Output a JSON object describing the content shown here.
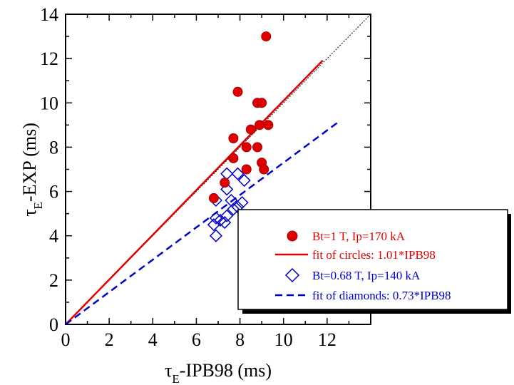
{
  "chart_data": {
    "type": "scatter",
    "title": "",
    "xlabel": {
      "main": "τ",
      "sub": "E",
      "rest": "-IPB98 (ms)"
    },
    "ylabel": {
      "main": "τ",
      "sub": "E",
      "rest": "-EXP (ms)"
    },
    "xlim": [
      0,
      14
    ],
    "ylim": [
      0,
      14
    ],
    "xticks": [
      "0",
      "2",
      "4",
      "6",
      "8",
      "10",
      "12"
    ],
    "yticks": [
      "0",
      "2",
      "4",
      "6",
      "8",
      "10",
      "12",
      "14"
    ],
    "grid": false,
    "legend_position": "bottom-right",
    "series": [
      {
        "name": "Bt=1 T, Ip=170 kA",
        "marker": "circle",
        "color": "#e00000",
        "points": [
          [
            9.2,
            13.0
          ],
          [
            7.9,
            10.5
          ],
          [
            8.8,
            10.0
          ],
          [
            9.0,
            10.0
          ],
          [
            8.9,
            9.0
          ],
          [
            9.3,
            9.0
          ],
          [
            8.5,
            8.8
          ],
          [
            7.7,
            8.4
          ],
          [
            8.3,
            8.0
          ],
          [
            8.8,
            8.0
          ],
          [
            7.7,
            7.5
          ],
          [
            9.0,
            7.3
          ],
          [
            8.3,
            7.0
          ],
          [
            9.1,
            7.0
          ],
          [
            7.3,
            6.4
          ],
          [
            6.8,
            5.7
          ]
        ]
      },
      {
        "name": "fit of circles: 1.01*IPB98",
        "marker": "line",
        "color": "#e00000",
        "slope": 1.01,
        "x_range": [
          0,
          11.8
        ]
      },
      {
        "name": "Bt=0.68 T, Ip=140 kA",
        "marker": "diamond",
        "color": "#0000cc",
        "points": [
          [
            7.4,
            6.8
          ],
          [
            7.9,
            6.8
          ],
          [
            7.4,
            6.1
          ],
          [
            8.2,
            6.5
          ],
          [
            6.9,
            5.6
          ],
          [
            7.6,
            5.6
          ],
          [
            7.7,
            5.2
          ],
          [
            7.9,
            5.3
          ],
          [
            8.1,
            5.5
          ],
          [
            6.9,
            4.8
          ],
          [
            7.1,
            4.7
          ],
          [
            7.4,
            4.9
          ],
          [
            7.3,
            4.6
          ],
          [
            6.8,
            4.5
          ],
          [
            6.9,
            4.0
          ]
        ]
      },
      {
        "name": "fit of diamonds: 0.73*IPB98",
        "marker": "dashed-line",
        "color": "#0000cc",
        "slope": 0.73,
        "x_range": [
          0,
          12.5
        ]
      }
    ],
    "reference_line": {
      "style": "dotted",
      "color": "#000000",
      "slope": 1
    }
  }
}
